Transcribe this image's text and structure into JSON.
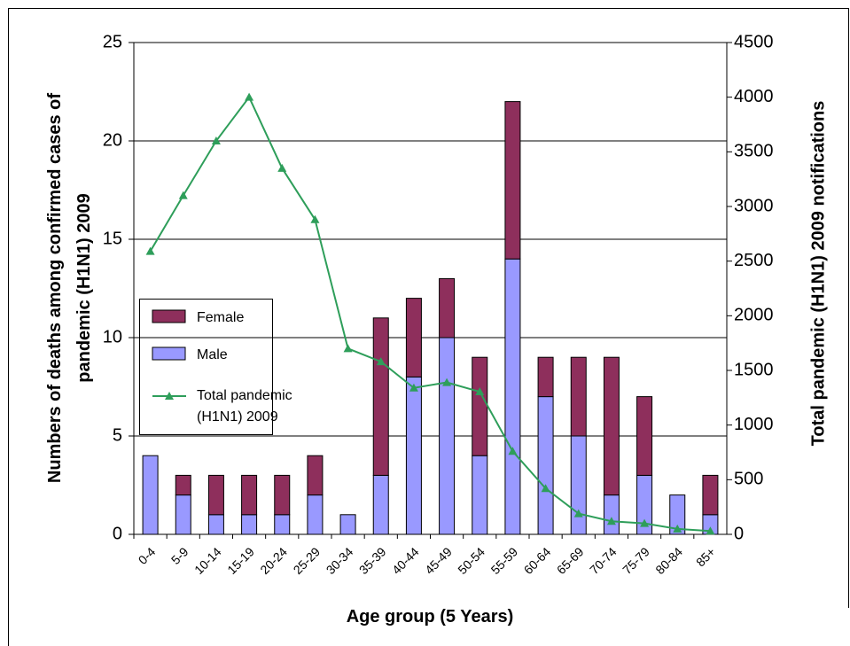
{
  "chart_data": {
    "type": "stacked-bar-line",
    "x_label": "Age group (5 Years)",
    "y_label": "Numbers of deaths among confirmed cases of pandemic (H1N1) 2009",
    "y2_label": "Total pandemic (H1N1) 2009 notifications",
    "categories": [
      "0-4",
      "5-9",
      "10-14",
      "15-19",
      "20-24",
      "25-29",
      "30-34",
      "35-39",
      "40-44",
      "45-49",
      "50-54",
      "55-59",
      "60-64",
      "65-69",
      "70-74",
      "75-79",
      "80-84",
      "85+"
    ],
    "series": [
      {
        "name": "Female",
        "type": "bar",
        "color": "#8e2f5c",
        "values": [
          0,
          1,
          2,
          2,
          2,
          2,
          0,
          8,
          4,
          3,
          5,
          8,
          2,
          4,
          7,
          4,
          0,
          2
        ]
      },
      {
        "name": "Male",
        "type": "bar",
        "color": "#9999ff",
        "values": [
          4,
          2,
          1,
          1,
          1,
          2,
          1,
          3,
          8,
          10,
          4,
          14,
          7,
          5,
          2,
          3,
          2,
          1
        ]
      },
      {
        "name": "Total pandemic (H1N1) 2009",
        "type": "line",
        "axis": "y2",
        "color": "#2e9e5a",
        "values": [
          2590,
          3100,
          3600,
          4000,
          3350,
          2880,
          1700,
          1580,
          1340,
          1390,
          1305,
          760,
          420,
          190,
          120,
          100,
          50,
          30
        ]
      }
    ],
    "ylim": [
      0,
      25
    ],
    "yticks": [
      0,
      5,
      10,
      15,
      20,
      25
    ],
    "y2lim": [
      0,
      4500
    ],
    "y2ticks": [
      0,
      500,
      1000,
      1500,
      2000,
      2500,
      3000,
      3500,
      4000,
      4500
    ],
    "grid": true,
    "legend": "left"
  }
}
